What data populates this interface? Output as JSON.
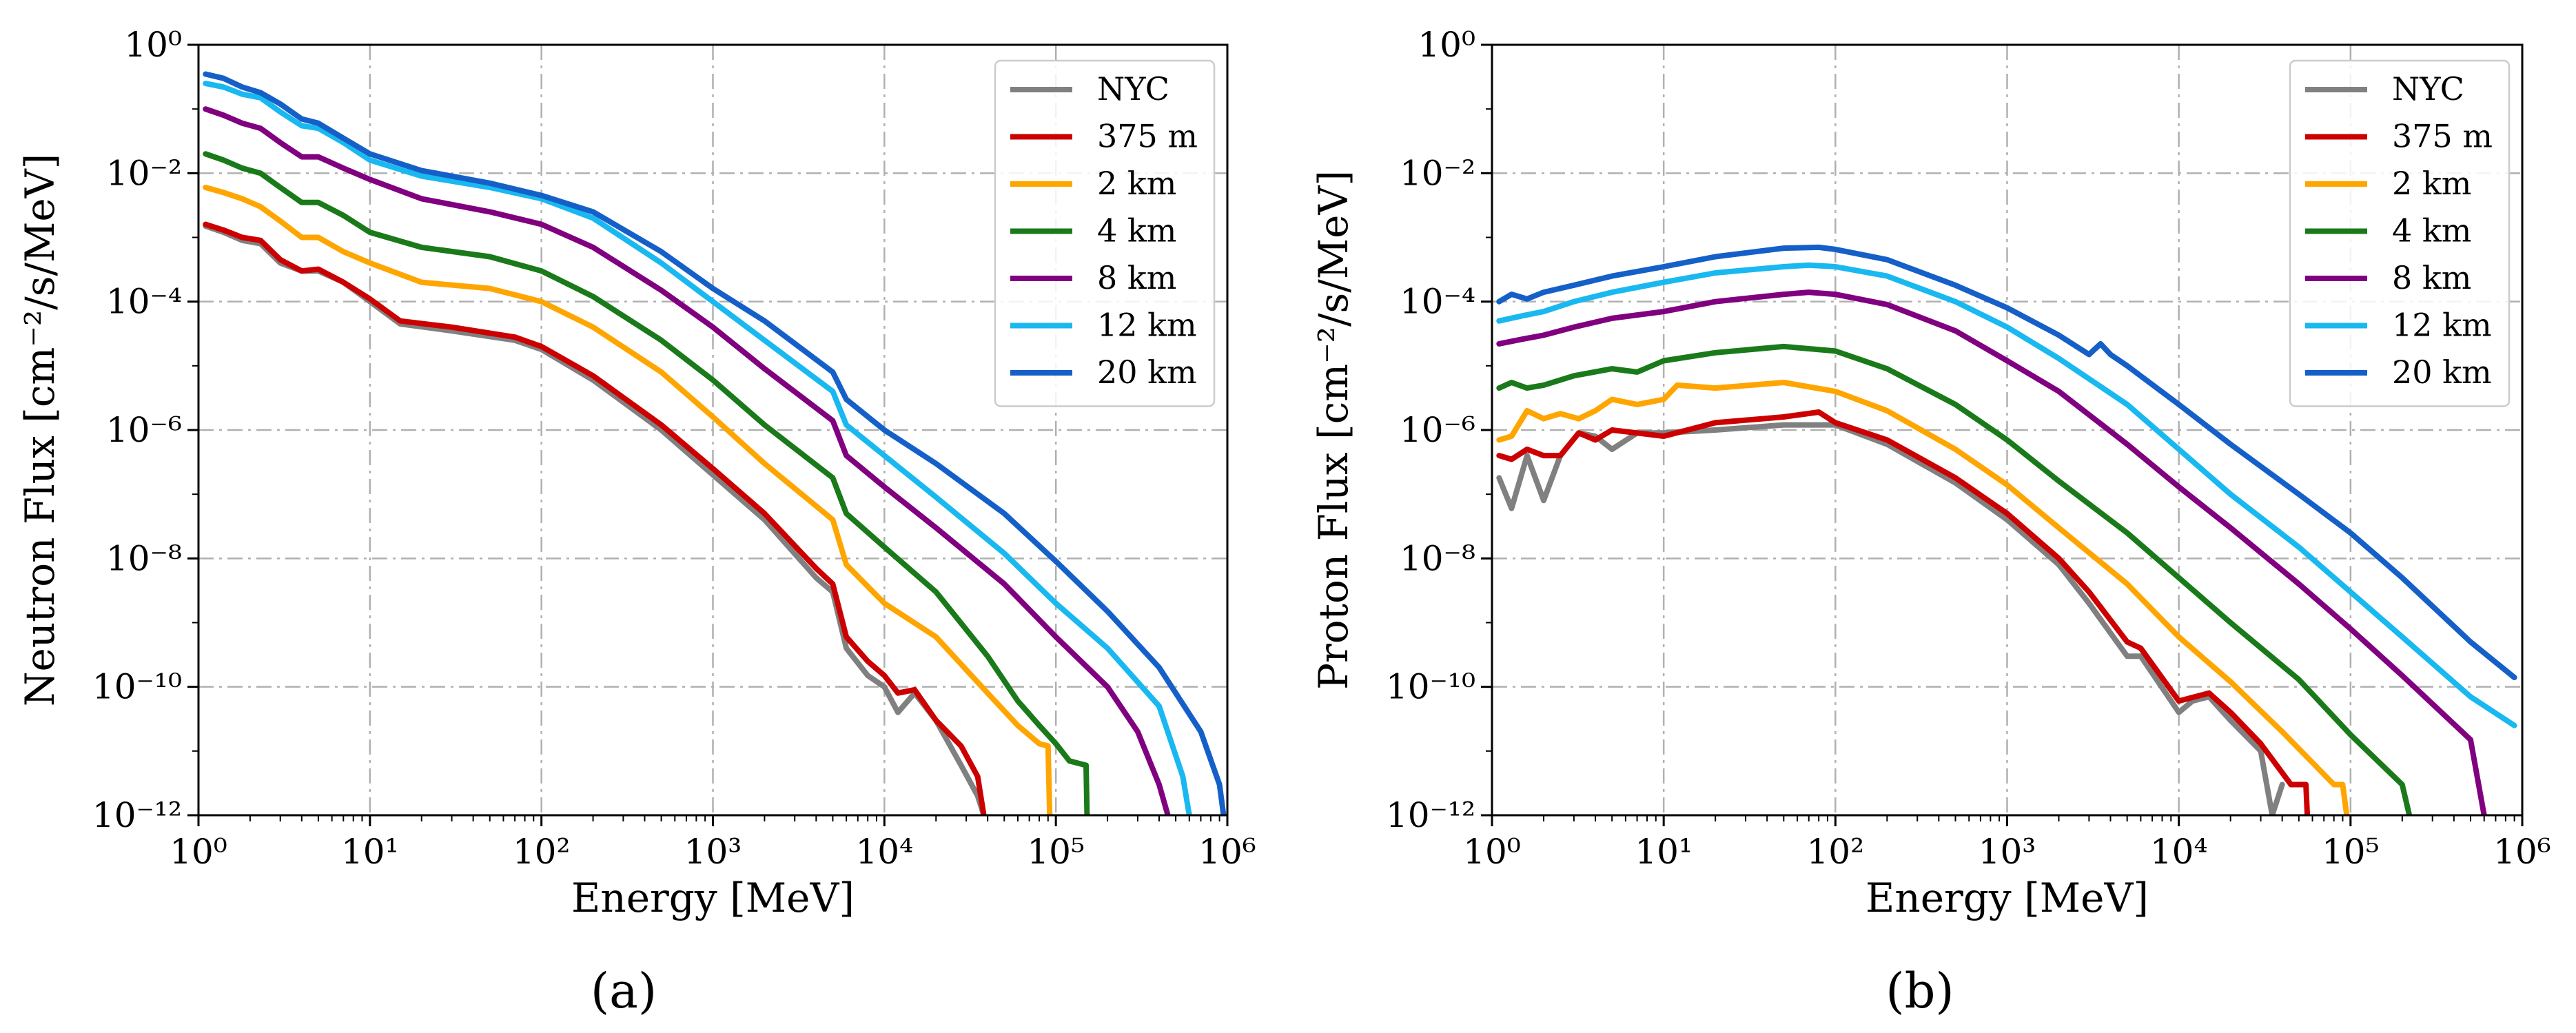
{
  "figure": {
    "captions": [
      "(a)",
      "(b)"
    ]
  },
  "colors": {
    "NYC": "#808080",
    "375 m": "#cc0000",
    "2 km": "#ffa500",
    "4 km": "#1a7a1a",
    "8 km": "#800080",
    "12 km": "#1ab8f0",
    "20 km": "#1560c8"
  },
  "chart_data": [
    {
      "type": "line",
      "title": "",
      "xlabel": "Energy [MeV]",
      "ylabel": "Neutron Flux [cm⁻²/s/MeV]",
      "xscale": "log",
      "yscale": "log",
      "xlim": [
        1,
        1000000
      ],
      "ylim": [
        1e-12,
        1
      ],
      "grid": true,
      "legend_position": "top-right",
      "x_tick_labels": [
        "10⁰",
        "10¹",
        "10²",
        "10³",
        "10⁴",
        "10⁵",
        "10⁶"
      ],
      "y_tick_labels": [
        "10⁻¹²",
        "10⁻¹⁰",
        "10⁻⁸",
        "10⁻⁶",
        "10⁻⁴",
        "10⁻²",
        "10⁰"
      ],
      "series": [
        {
          "name": "NYC",
          "x": [
            1.1,
            1.4,
            1.8,
            2.3,
            3,
            4,
            5,
            7,
            10,
            15,
            30,
            70,
            100,
            200,
            500,
            1000,
            2000,
            4000,
            5000,
            6000,
            8000,
            10000,
            12000,
            15000,
            20000,
            28000,
            35000,
            38000
          ],
          "y": [
            0.0015,
            0.0012,
            0.0009,
            0.0008,
            0.0004,
            0.0003,
            0.0003,
            0.0002,
            0.0001,
            4.5e-05,
            3.5e-05,
            2.5e-05,
            1.8e-05,
            6e-06,
            1e-06,
            2e-07,
            4e-08,
            5e-09,
            3e-09,
            4e-10,
            1.5e-10,
            1e-10,
            4e-11,
            8e-11,
            3e-11,
            6e-12,
            2e-12,
            1e-12
          ]
        },
        {
          "name": "375 m",
          "x": [
            1.1,
            1.4,
            1.8,
            2.3,
            3,
            4,
            5,
            7,
            10,
            15,
            30,
            70,
            100,
            200,
            500,
            1000,
            2000,
            4000,
            5000,
            6000,
            8000,
            10000,
            12000,
            15000,
            20000,
            28000,
            35000,
            38000
          ],
          "y": [
            0.0016,
            0.0013,
            0.001,
            0.0009,
            0.00045,
            0.0003,
            0.00032,
            0.0002,
            0.00011,
            5e-05,
            4e-05,
            2.8e-05,
            2e-05,
            7e-06,
            1.2e-06,
            2.5e-07,
            5e-08,
            7e-09,
            4e-09,
            6e-10,
            2.5e-10,
            1.5e-10,
            8e-11,
            9e-11,
            3e-11,
            1.2e-11,
            4e-12,
            1e-12
          ]
        },
        {
          "name": "2 km",
          "x": [
            1.1,
            1.4,
            1.8,
            2.3,
            3,
            4,
            5,
            7,
            10,
            20,
            50,
            100,
            200,
            500,
            1000,
            2000,
            5000,
            6000,
            10000,
            20000,
            40000,
            60000,
            80000,
            90000,
            92000
          ],
          "y": [
            0.006,
            0.005,
            0.004,
            0.003,
            0.0018,
            0.001,
            0.001,
            0.0006,
            0.0004,
            0.0002,
            0.00016,
            0.0001,
            4e-05,
            8e-06,
            1.6e-06,
            3e-07,
            4e-08,
            8e-09,
            2e-09,
            6e-10,
            8e-11,
            2.5e-11,
            1.3e-11,
            1.2e-11,
            1e-12
          ]
        },
        {
          "name": "4 km",
          "x": [
            1.1,
            1.4,
            1.8,
            2.3,
            3,
            4,
            5,
            7,
            10,
            20,
            50,
            100,
            200,
            500,
            1000,
            2000,
            5000,
            6000,
            10000,
            20000,
            40000,
            60000,
            80000,
            100000,
            120000,
            150000,
            152000
          ],
          "y": [
            0.02,
            0.016,
            0.012,
            0.01,
            0.006,
            0.0035,
            0.0035,
            0.0022,
            0.0012,
            0.0007,
            0.0005,
            0.0003,
            0.00012,
            2.5e-05,
            6e-06,
            1.2e-06,
            1.8e-07,
            5e-08,
            1.5e-08,
            3e-09,
            3e-10,
            6e-11,
            2.5e-11,
            1.3e-11,
            7e-12,
            6e-12,
            1e-12
          ]
        },
        {
          "name": "8 km",
          "x": [
            1.1,
            1.4,
            1.8,
            2.3,
            3,
            4,
            5,
            7,
            10,
            20,
            50,
            100,
            200,
            500,
            1000,
            2000,
            5000,
            6000,
            10000,
            20000,
            50000,
            100000,
            200000,
            300000,
            400000,
            450000
          ],
          "y": [
            0.1,
            0.08,
            0.06,
            0.05,
            0.03,
            0.018,
            0.018,
            0.012,
            0.008,
            0.004,
            0.0025,
            0.0016,
            0.0007,
            0.00015,
            4e-05,
            9e-06,
            1.4e-06,
            4e-07,
            1.3e-07,
            3e-08,
            4e-09,
            6e-10,
            1e-10,
            2e-11,
            3e-12,
            1e-12
          ]
        },
        {
          "name": "12 km",
          "x": [
            1.1,
            1.4,
            1.8,
            2.3,
            3,
            4,
            5,
            7,
            10,
            20,
            50,
            100,
            200,
            500,
            1000,
            2000,
            5000,
            6000,
            10000,
            20000,
            50000,
            100000,
            200000,
            400000,
            550000,
            600000
          ],
          "y": [
            0.25,
            0.22,
            0.17,
            0.15,
            0.09,
            0.055,
            0.05,
            0.03,
            0.016,
            0.009,
            0.006,
            0.004,
            0.002,
            0.0004,
            0.0001,
            2.5e-05,
            4e-06,
            1.2e-06,
            4e-07,
            9e-08,
            1.2e-08,
            2e-09,
            4e-10,
            5e-11,
            4e-12,
            1e-12
          ]
        },
        {
          "name": "20 km",
          "x": [
            1.1,
            1.4,
            1.8,
            2.3,
            3,
            4,
            5,
            7,
            10,
            20,
            50,
            100,
            200,
            500,
            1000,
            2000,
            5000,
            6000,
            10000,
            20000,
            50000,
            100000,
            200000,
            400000,
            700000,
            900000,
            950000
          ],
          "y": [
            0.35,
            0.3,
            0.22,
            0.18,
            0.12,
            0.07,
            0.06,
            0.035,
            0.02,
            0.011,
            0.007,
            0.0045,
            0.0025,
            0.0006,
            0.00016,
            5e-05,
            8e-06,
            3e-06,
            1e-06,
            3e-07,
            5e-08,
            9e-09,
            1.5e-09,
            2e-10,
            2e-11,
            3e-12,
            1e-12
          ]
        }
      ]
    },
    {
      "type": "line",
      "title": "",
      "xlabel": "Energy [MeV]",
      "ylabel": "Proton Flux [cm⁻²/s/MeV]",
      "xscale": "log",
      "yscale": "log",
      "xlim": [
        1,
        1000000
      ],
      "ylim": [
        1e-12,
        1
      ],
      "grid": true,
      "legend_position": "top-right",
      "x_tick_labels": [
        "10⁰",
        "10¹",
        "10²",
        "10³",
        "10⁴",
        "10⁵",
        "10⁶"
      ],
      "y_tick_labels": [
        "10⁻¹²",
        "10⁻¹⁰",
        "10⁻⁸",
        "10⁻⁶",
        "10⁻⁴",
        "10⁻²",
        "10⁰"
      ],
      "series": [
        {
          "name": "NYC",
          "x": [
            1.1,
            1.3,
            1.6,
            2,
            2.5,
            3.2,
            4,
            5,
            7,
            10,
            20,
            50,
            100,
            200,
            500,
            1000,
            2000,
            3000,
            5000,
            6000,
            10000,
            12000,
            15000,
            20000,
            30000,
            35000,
            40000
          ],
          "y": [
            1.8e-07,
            6e-08,
            4e-07,
            8e-08,
            4e-07,
            9e-07,
            8e-07,
            5e-07,
            9e-07,
            9e-07,
            1e-06,
            1.2e-06,
            1.2e-06,
            6e-07,
            1.5e-07,
            4e-08,
            8e-09,
            2e-09,
            3e-10,
            3e-10,
            4e-11,
            6e-11,
            7e-11,
            3e-11,
            1e-11,
            1e-12,
            3e-12
          ]
        },
        {
          "name": "375 m",
          "x": [
            1.1,
            1.3,
            1.6,
            2,
            2.5,
            3.2,
            4,
            5,
            7,
            10,
            20,
            50,
            80,
            100,
            200,
            500,
            1000,
            2000,
            3000,
            5000,
            6000,
            10000,
            15000,
            20000,
            30000,
            45000,
            55000,
            56000
          ],
          "y": [
            4e-07,
            3.5e-07,
            5e-07,
            4e-07,
            4e-07,
            9e-07,
            7e-07,
            1e-06,
            9e-07,
            8e-07,
            1.3e-06,
            1.6e-06,
            1.9e-06,
            1.3e-06,
            7e-07,
            1.8e-07,
            5e-08,
            1e-08,
            3e-09,
            5e-10,
            4e-10,
            6e-11,
            8e-11,
            4e-11,
            1.3e-11,
            3e-12,
            3e-12,
            1e-12
          ]
        },
        {
          "name": "2 km",
          "x": [
            1.1,
            1.3,
            1.6,
            2,
            2.5,
            3.2,
            4,
            5,
            7,
            10,
            12,
            20,
            50,
            100,
            200,
            500,
            1000,
            2000,
            5000,
            10000,
            20000,
            40000,
            80000,
            90000,
            95000
          ],
          "y": [
            7e-07,
            8e-07,
            2e-06,
            1.5e-06,
            1.8e-06,
            1.5e-06,
            2e-06,
            3e-06,
            2.5e-06,
            3e-06,
            5e-06,
            4.5e-06,
            5.5e-06,
            4e-06,
            2e-06,
            5e-07,
            1.4e-07,
            3e-08,
            4e-09,
            6e-10,
            1.2e-10,
            2e-11,
            3e-12,
            3e-12,
            1e-12
          ]
        },
        {
          "name": "4 km",
          "x": [
            1.1,
            1.3,
            1.6,
            2,
            3,
            5,
            7,
            10,
            20,
            50,
            100,
            200,
            500,
            1000,
            2000,
            5000,
            10000,
            20000,
            50000,
            100000,
            200000,
            220000
          ],
          "y": [
            4.5e-06,
            5.5e-06,
            4.5e-06,
            5e-06,
            7e-06,
            9e-06,
            8e-06,
            1.2e-05,
            1.6e-05,
            2e-05,
            1.7e-05,
            9e-06,
            2.5e-06,
            7e-07,
            1.6e-07,
            2.5e-08,
            5e-09,
            1e-09,
            1.3e-10,
            1.8e-11,
            3e-12,
            1e-12
          ]
        },
        {
          "name": "8 km",
          "x": [
            1.1,
            1.5,
            2,
            3,
            5,
            10,
            20,
            50,
            70,
            100,
            200,
            500,
            1000,
            2000,
            5000,
            10000,
            20000,
            50000,
            100000,
            200000,
            500000,
            600000
          ],
          "y": [
            2.2e-05,
            2.6e-05,
            3e-05,
            4e-05,
            5.5e-05,
            7e-05,
            0.0001,
            0.00013,
            0.00014,
            0.00013,
            9e-05,
            3.5e-05,
            1.2e-05,
            4e-06,
            6e-07,
            1.3e-07,
            3e-08,
            4e-09,
            8e-10,
            1.5e-10,
            1.5e-11,
            1e-12
          ]
        },
        {
          "name": "12 km",
          "x": [
            1.1,
            1.5,
            2,
            3,
            5,
            10,
            20,
            50,
            70,
            100,
            200,
            500,
            1000,
            2000,
            5000,
            10000,
            20000,
            50000,
            100000,
            200000,
            500000,
            900000
          ],
          "y": [
            5e-05,
            6e-05,
            7e-05,
            0.0001,
            0.00014,
            0.0002,
            0.00028,
            0.00035,
            0.00037,
            0.00035,
            0.00025,
            0.0001,
            4e-05,
            1.3e-05,
            2.5e-06,
            5e-07,
            1e-07,
            1.5e-08,
            3e-09,
            6e-10,
            7e-11,
            2.5e-11
          ]
        },
        {
          "name": "20 km",
          "x": [
            1.1,
            1.3,
            1.6,
            2,
            3,
            5,
            10,
            20,
            50,
            80,
            100,
            200,
            500,
            1000,
            2000,
            3000,
            3500,
            4000,
            5000,
            10000,
            20000,
            50000,
            100000,
            200000,
            500000,
            900000
          ],
          "y": [
            0.0001,
            0.00013,
            0.00011,
            0.00014,
            0.00018,
            0.00025,
            0.00035,
            0.0005,
            0.00068,
            0.0007,
            0.00065,
            0.00045,
            0.00018,
            8e-05,
            3e-05,
            1.5e-05,
            2.2e-05,
            1.5e-05,
            1e-05,
            2.5e-06,
            6e-07,
            1e-07,
            2.5e-08,
            5e-09,
            5e-10,
            1.4e-10
          ]
        }
      ]
    }
  ]
}
